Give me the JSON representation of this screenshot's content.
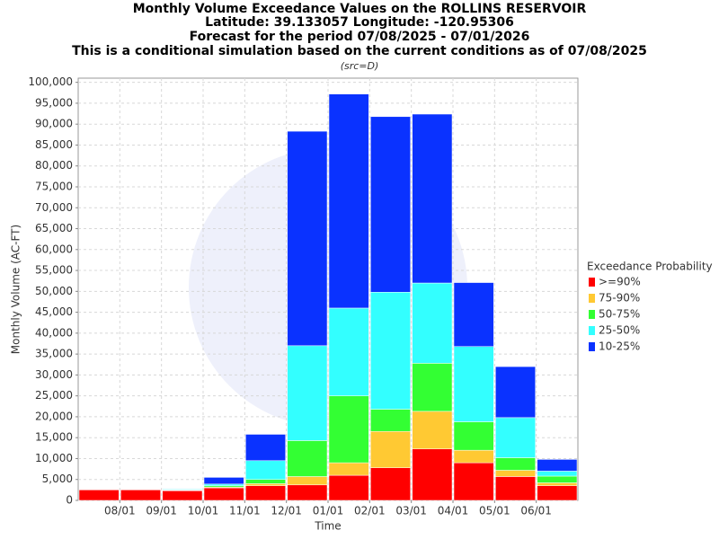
{
  "chart_data": {
    "type": "stacked-bar",
    "title": [
      "Monthly Volume Exceedance Values on the ROLLINS RESERVOIR",
      "Latitude: 39.133057 Longitude: -120.95306",
      "Forecast for the period 07/08/2025 - 07/01/2026",
      "This is a conditional simulation based on the current conditions as of 07/08/2025"
    ],
    "subtitle": "(src=D)",
    "x_label": "Time",
    "y_label": "Monthly Volume (AC-FT)",
    "legend_title": "Exceedance Probability",
    "xticks": [
      "08/01",
      "09/01",
      "10/01",
      "11/01",
      "12/01",
      "01/01",
      "02/01",
      "03/01",
      "04/01",
      "05/01",
      "06/01"
    ],
    "ylim": [
      0,
      101000
    ],
    "yticks": [
      0,
      {
        "value": 5000,
        "label": "5,000"
      },
      {
        "value": 10000,
        "label": "10,000"
      },
      {
        "value": 15000,
        "label": "15,000"
      },
      {
        "value": 20000,
        "label": "20,000"
      },
      {
        "value": 25000,
        "label": "25,000"
      },
      {
        "value": 30000,
        "label": "30,000"
      },
      {
        "value": 35000,
        "label": "35,000"
      },
      {
        "value": 40000,
        "label": "40,000"
      },
      {
        "value": 45000,
        "label": "45,000"
      },
      {
        "value": 50000,
        "label": "50,000"
      },
      {
        "value": 55000,
        "label": "55,000"
      },
      {
        "value": 60000,
        "label": "60,000"
      },
      {
        "value": 65000,
        "label": "65,000"
      },
      {
        "value": 70000,
        "label": "70,000"
      },
      {
        "value": 75000,
        "label": "75,000"
      },
      {
        "value": 80000,
        "label": "80,000"
      },
      {
        "value": 85000,
        "label": "85,000"
      },
      {
        "value": 90000,
        "label": "90,000"
      },
      {
        "value": 95000,
        "label": "95,000"
      },
      {
        "value": {
          "value": 100000,
          "label": "100,000"
        },
        "label": "100,000"
      }
    ],
    "grid": true,
    "legend": "right",
    "series": [
      {
        "name": ">=90%",
        "color": "#ff0000",
        "values": [
          2500,
          2500,
          2300,
          3000,
          3500,
          3700,
          6000,
          7800,
          12300,
          9000,
          5700,
          3500
        ]
      },
      {
        "name": "75-90%",
        "color": "#ffc933",
        "values": [
          0,
          0,
          100,
          200,
          500,
          2000,
          3000,
          8700,
          9000,
          3000,
          1500,
          700
        ]
      },
      {
        "name": "50-75%",
        "color": "#33ff33",
        "values": [
          0,
          0,
          100,
          300,
          1000,
          8600,
          16000,
          5300,
          11500,
          6800,
          3000,
          1600
        ]
      },
      {
        "name": "25-50%",
        "color": "#33ffff",
        "values": [
          0,
          0,
          200,
          400,
          4500,
          22700,
          21000,
          28000,
          19200,
          18000,
          9600,
          1200
        ]
      },
      {
        "name": "10-25%",
        "color": "#0a32ff",
        "values": [
          0,
          0,
          100,
          1600,
          6300,
          51300,
          51200,
          42000,
          40400,
          15300,
          12200,
          2800
        ]
      }
    ]
  }
}
